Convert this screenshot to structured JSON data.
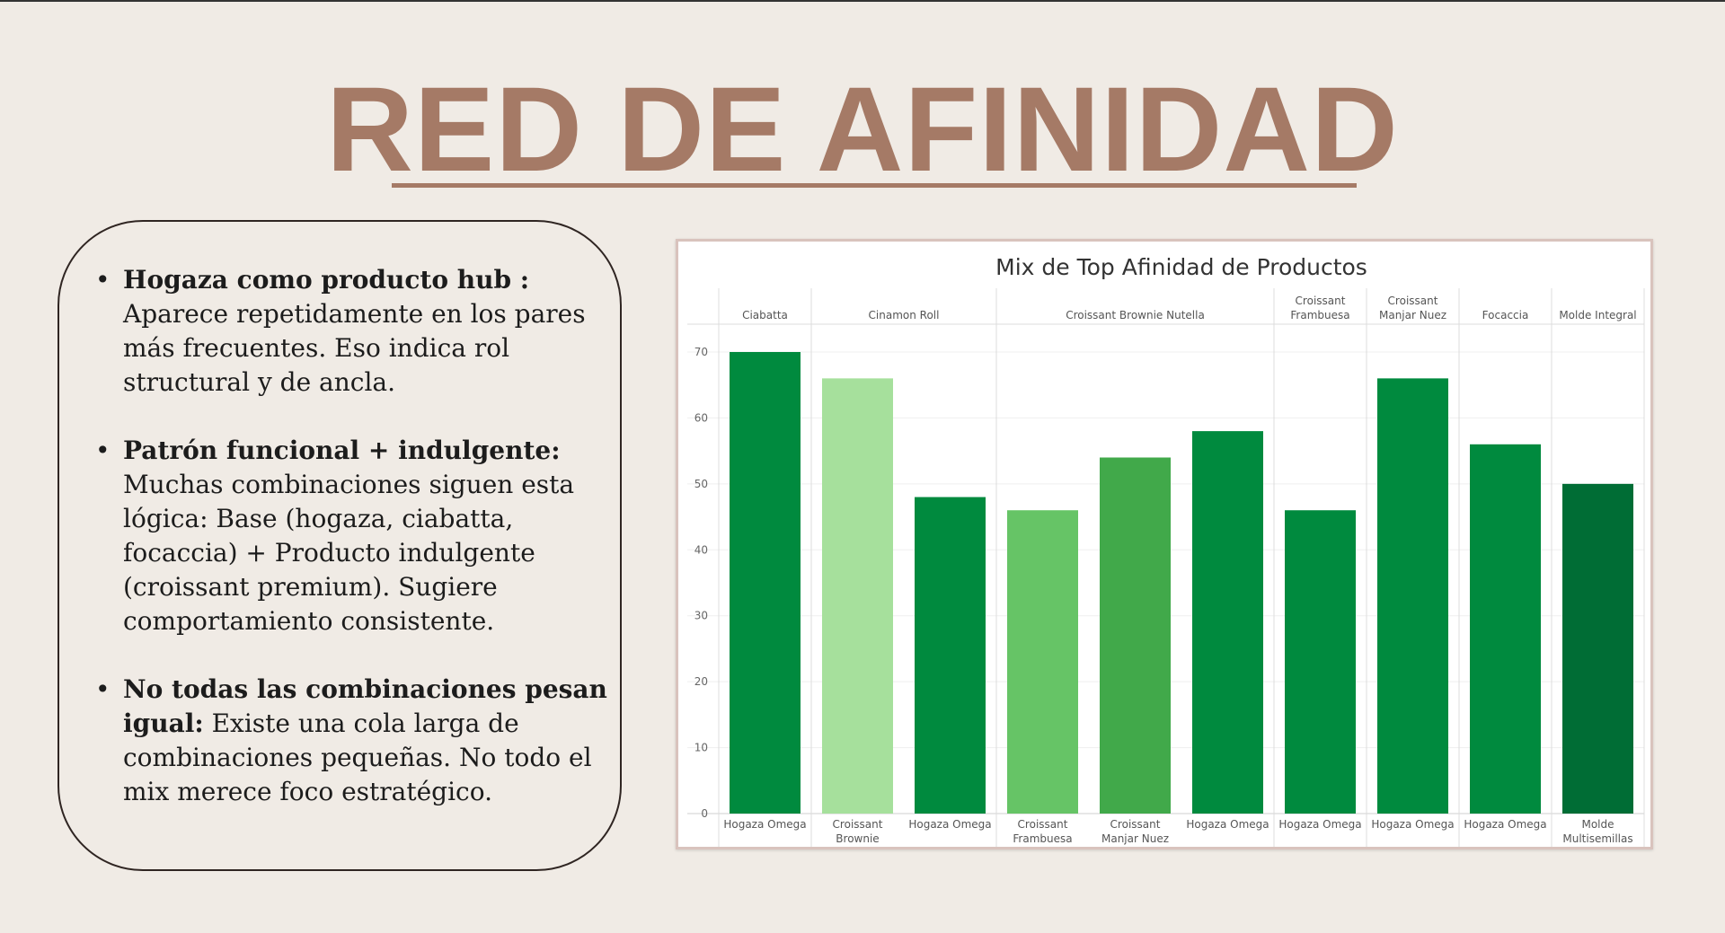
{
  "slide": {
    "title": "RED DE AFINIDAD"
  },
  "notes": [
    {
      "bold": "Hogaza como producto hub :",
      "text": " Aparece repetidamente en los pares más frecuentes. Eso indica rol structural y de ancla."
    },
    {
      "bold": "Patrón funcional + indulgente:",
      "text": " Muchas combinaciones siguen esta lógica: Base (hogaza, ciabatta, focaccia) + Producto indulgente (croissant premium). Sugiere comportamiento consistente."
    },
    {
      "bold": "No todas las combinaciones pesan igual:",
      "text": " Existe una cola larga de combinaciones pequeñas. No todo el mix merece foco estratégico."
    }
  ],
  "chart_data": {
    "type": "bar",
    "title": "Mix de Top Afinidad de Productos",
    "xlabel": "",
    "ylabel": "",
    "ylim": [
      0,
      70
    ],
    "yticks": [
      0,
      10,
      20,
      30,
      40,
      50,
      60,
      70
    ],
    "grid": true,
    "groups": [
      {
        "name": "Ciabatta",
        "bars": [
          {
            "label": "Hogaza Omega",
            "value": 70,
            "color": "#008a3e"
          }
        ]
      },
      {
        "name": "Cinamon Roll",
        "bars": [
          {
            "label": "Croissant Brownie Nutella",
            "value": 66,
            "color": "#a6e09c"
          },
          {
            "label": "Hogaza Omega",
            "value": 48,
            "color": "#008a3e"
          }
        ]
      },
      {
        "name": "Croissant Brownie Nutella",
        "bars": [
          {
            "label": "Croissant Frambuesa",
            "value": 46,
            "color": "#66c466"
          },
          {
            "label": "Croissant Manjar Nuez",
            "value": 54,
            "color": "#41a94a"
          },
          {
            "label": "Hogaza Omega",
            "value": 58,
            "color": "#008a3e"
          }
        ]
      },
      {
        "name": "Croissant Frambuesa",
        "bars": [
          {
            "label": "Hogaza Omega",
            "value": 46,
            "color": "#008a3e"
          }
        ]
      },
      {
        "name": "Croissant Manjar Nuez",
        "bars": [
          {
            "label": "Hogaza Omega",
            "value": 66,
            "color": "#008a3e"
          }
        ]
      },
      {
        "name": "Focaccia",
        "bars": [
          {
            "label": "Hogaza Omega",
            "value": 56,
            "color": "#008a3e"
          }
        ]
      },
      {
        "name": "Molde Integral",
        "bars": [
          {
            "label": "Molde Multisemillas",
            "value": 50,
            "color": "#006d35"
          }
        ]
      }
    ]
  }
}
